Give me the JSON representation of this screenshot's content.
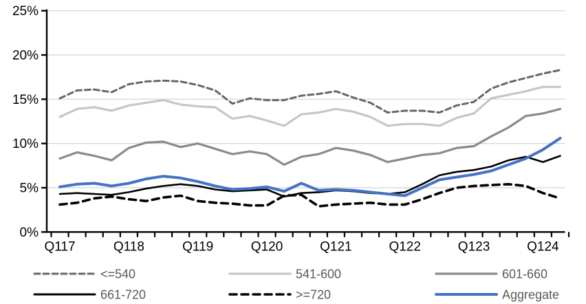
{
  "chart_data": {
    "type": "line",
    "title": "",
    "xlabel": "",
    "ylabel": "",
    "ylim": [
      0,
      25
    ],
    "y_tick_labels": [
      "0%",
      "5%",
      "10%",
      "15%",
      "20%",
      "25%"
    ],
    "y_tick_step_pct": 5,
    "x_tick_labels": [
      "Q117",
      "Q118",
      "Q119",
      "Q120",
      "Q121",
      "Q122",
      "Q123",
      "Q124"
    ],
    "x_label_every_n_points": 4,
    "n_points": 30,
    "grid": true,
    "gridline_color": "#d6d6d6",
    "axis_color": "#000000",
    "legend_position": "bottom",
    "legend_text_color": "#595959",
    "series": [
      {
        "name": "<=540",
        "safe_name": "lte-540",
        "color": "#666666",
        "dash": "8 5",
        "width": 3,
        "values": [
          15.1,
          16.0,
          16.1,
          15.8,
          16.7,
          17.0,
          17.1,
          17.0,
          16.6,
          16.0,
          14.5,
          15.1,
          14.9,
          14.9,
          15.4,
          15.6,
          15.9,
          15.2,
          14.6,
          13.5,
          13.7,
          13.7,
          13.5,
          14.3,
          14.7,
          16.2,
          16.9,
          17.4,
          17.9,
          18.3
        ]
      },
      {
        "name": "541-600",
        "safe_name": "541-600",
        "color": "#c6c6c6",
        "dash": null,
        "width": 3.2,
        "values": [
          13.0,
          13.9,
          14.1,
          13.7,
          14.3,
          14.6,
          14.9,
          14.4,
          14.2,
          14.1,
          12.8,
          13.1,
          12.6,
          12.0,
          13.3,
          13.5,
          13.9,
          13.6,
          13.0,
          12.0,
          12.2,
          12.2,
          12.0,
          12.9,
          13.4,
          15.1,
          15.5,
          15.9,
          16.4,
          16.4
        ]
      },
      {
        "name": "601-660",
        "safe_name": "601-660",
        "color": "#8a8a8a",
        "dash": null,
        "width": 3.2,
        "values": [
          8.3,
          9.0,
          8.6,
          8.1,
          9.5,
          10.1,
          10.2,
          9.6,
          10.0,
          9.4,
          8.8,
          9.1,
          8.8,
          7.6,
          8.5,
          8.8,
          9.5,
          9.2,
          8.7,
          7.9,
          8.3,
          8.7,
          8.9,
          9.5,
          9.7,
          10.8,
          11.8,
          13.1,
          13.4,
          13.9
        ]
      },
      {
        "name": "661-720",
        "safe_name": "661-720",
        "color": "#000000",
        "dash": null,
        "width": 2.6,
        "values": [
          4.3,
          4.4,
          4.3,
          4.2,
          4.5,
          4.9,
          5.2,
          5.4,
          5.2,
          4.8,
          4.6,
          4.7,
          4.8,
          4.0,
          4.4,
          4.5,
          4.7,
          4.6,
          4.4,
          4.3,
          4.5,
          5.4,
          6.4,
          6.8,
          7.0,
          7.4,
          8.1,
          8.5,
          7.9,
          8.6
        ]
      },
      {
        "name": ">=720",
        "safe_name": "gte-720",
        "color": "#000000",
        "dash": "10 7",
        "width": 3.6,
        "values": [
          3.1,
          3.3,
          3.8,
          4.0,
          3.7,
          3.5,
          3.9,
          4.1,
          3.5,
          3.3,
          3.2,
          3.0,
          3.0,
          4.1,
          4.2,
          2.9,
          3.1,
          3.2,
          3.3,
          3.1,
          3.1,
          3.7,
          4.4,
          5.0,
          5.2,
          5.3,
          5.4,
          5.2,
          4.4,
          3.8
        ]
      },
      {
        "name": "Aggregate",
        "safe_name": "aggregate",
        "color": "#4472c4",
        "dash": null,
        "width": 4,
        "values": [
          5.1,
          5.4,
          5.5,
          5.2,
          5.5,
          6.0,
          6.3,
          6.1,
          5.7,
          5.2,
          4.8,
          4.9,
          5.1,
          4.6,
          5.5,
          4.7,
          4.8,
          4.7,
          4.5,
          4.3,
          4.1,
          5.0,
          5.9,
          6.2,
          6.5,
          6.9,
          7.6,
          8.3,
          9.3,
          10.6
        ]
      }
    ],
    "legend_rows": [
      [
        "<=540",
        "541-600",
        "601-660"
      ],
      [
        "661-720",
        ">=720",
        "Aggregate"
      ]
    ]
  }
}
